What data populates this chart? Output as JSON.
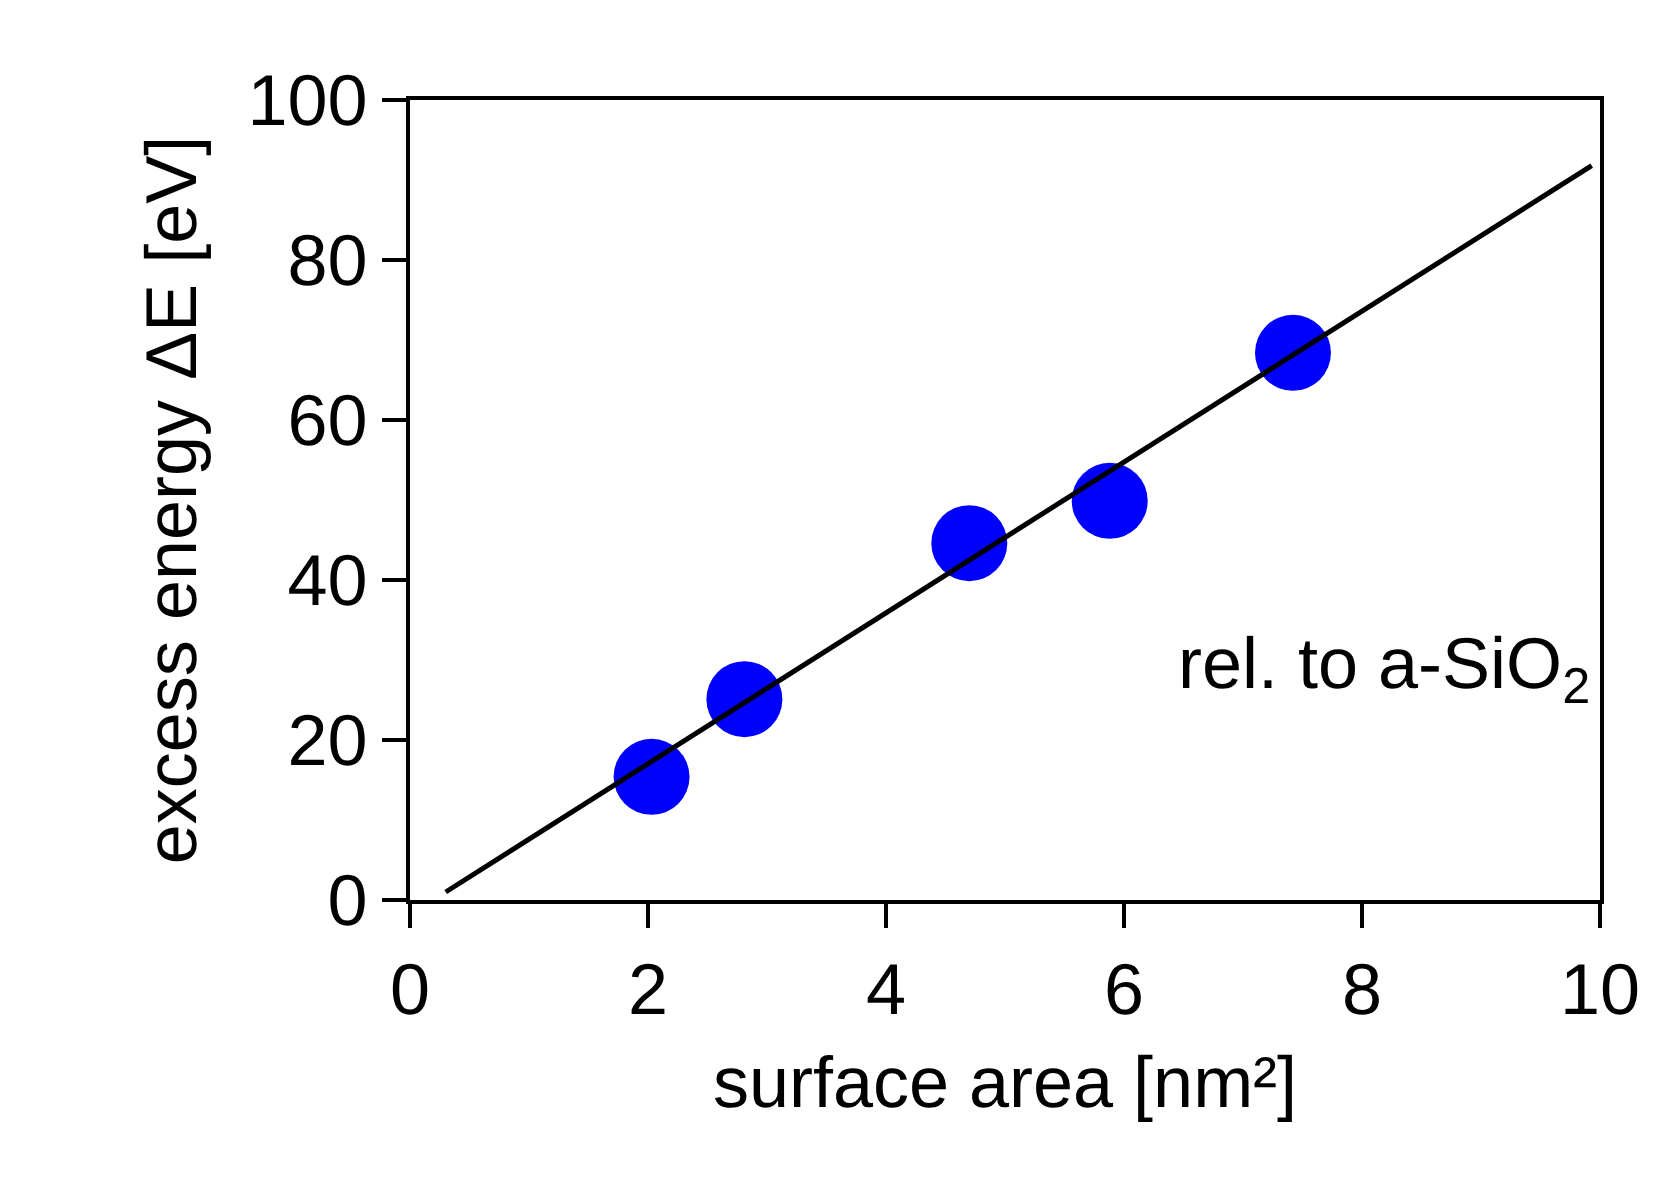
{
  "chart_data": {
    "type": "scatter",
    "xlabel": "surface area [nm²]",
    "ylabel": "excess energy ΔE [eV]",
    "x": [
      2.03,
      2.81,
      4.7,
      5.88,
      7.42
    ],
    "series": [
      {
        "color": "#0000ff",
        "marker": "circle",
        "values": [
          15.4,
          25.1,
          44.6,
          49.9,
          68.4
        ]
      },
      {
        "type": "line",
        "color": "#000000",
        "x": [
          0.3,
          9.93
        ],
        "values": [
          1.0,
          91.8
        ],
        "marker": "none",
        "line_style": "solid"
      }
    ],
    "annotations": [
      "rel. to a-SiO$_{2}$"
    ],
    "xlim": [
      0,
      10
    ],
    "xticks": [
      0,
      2,
      4,
      6,
      8,
      10
    ],
    "ylim": [
      0,
      100
    ],
    "yticks": [
      0,
      20,
      40,
      60,
      80,
      100
    ],
    "grid": false
  }
}
